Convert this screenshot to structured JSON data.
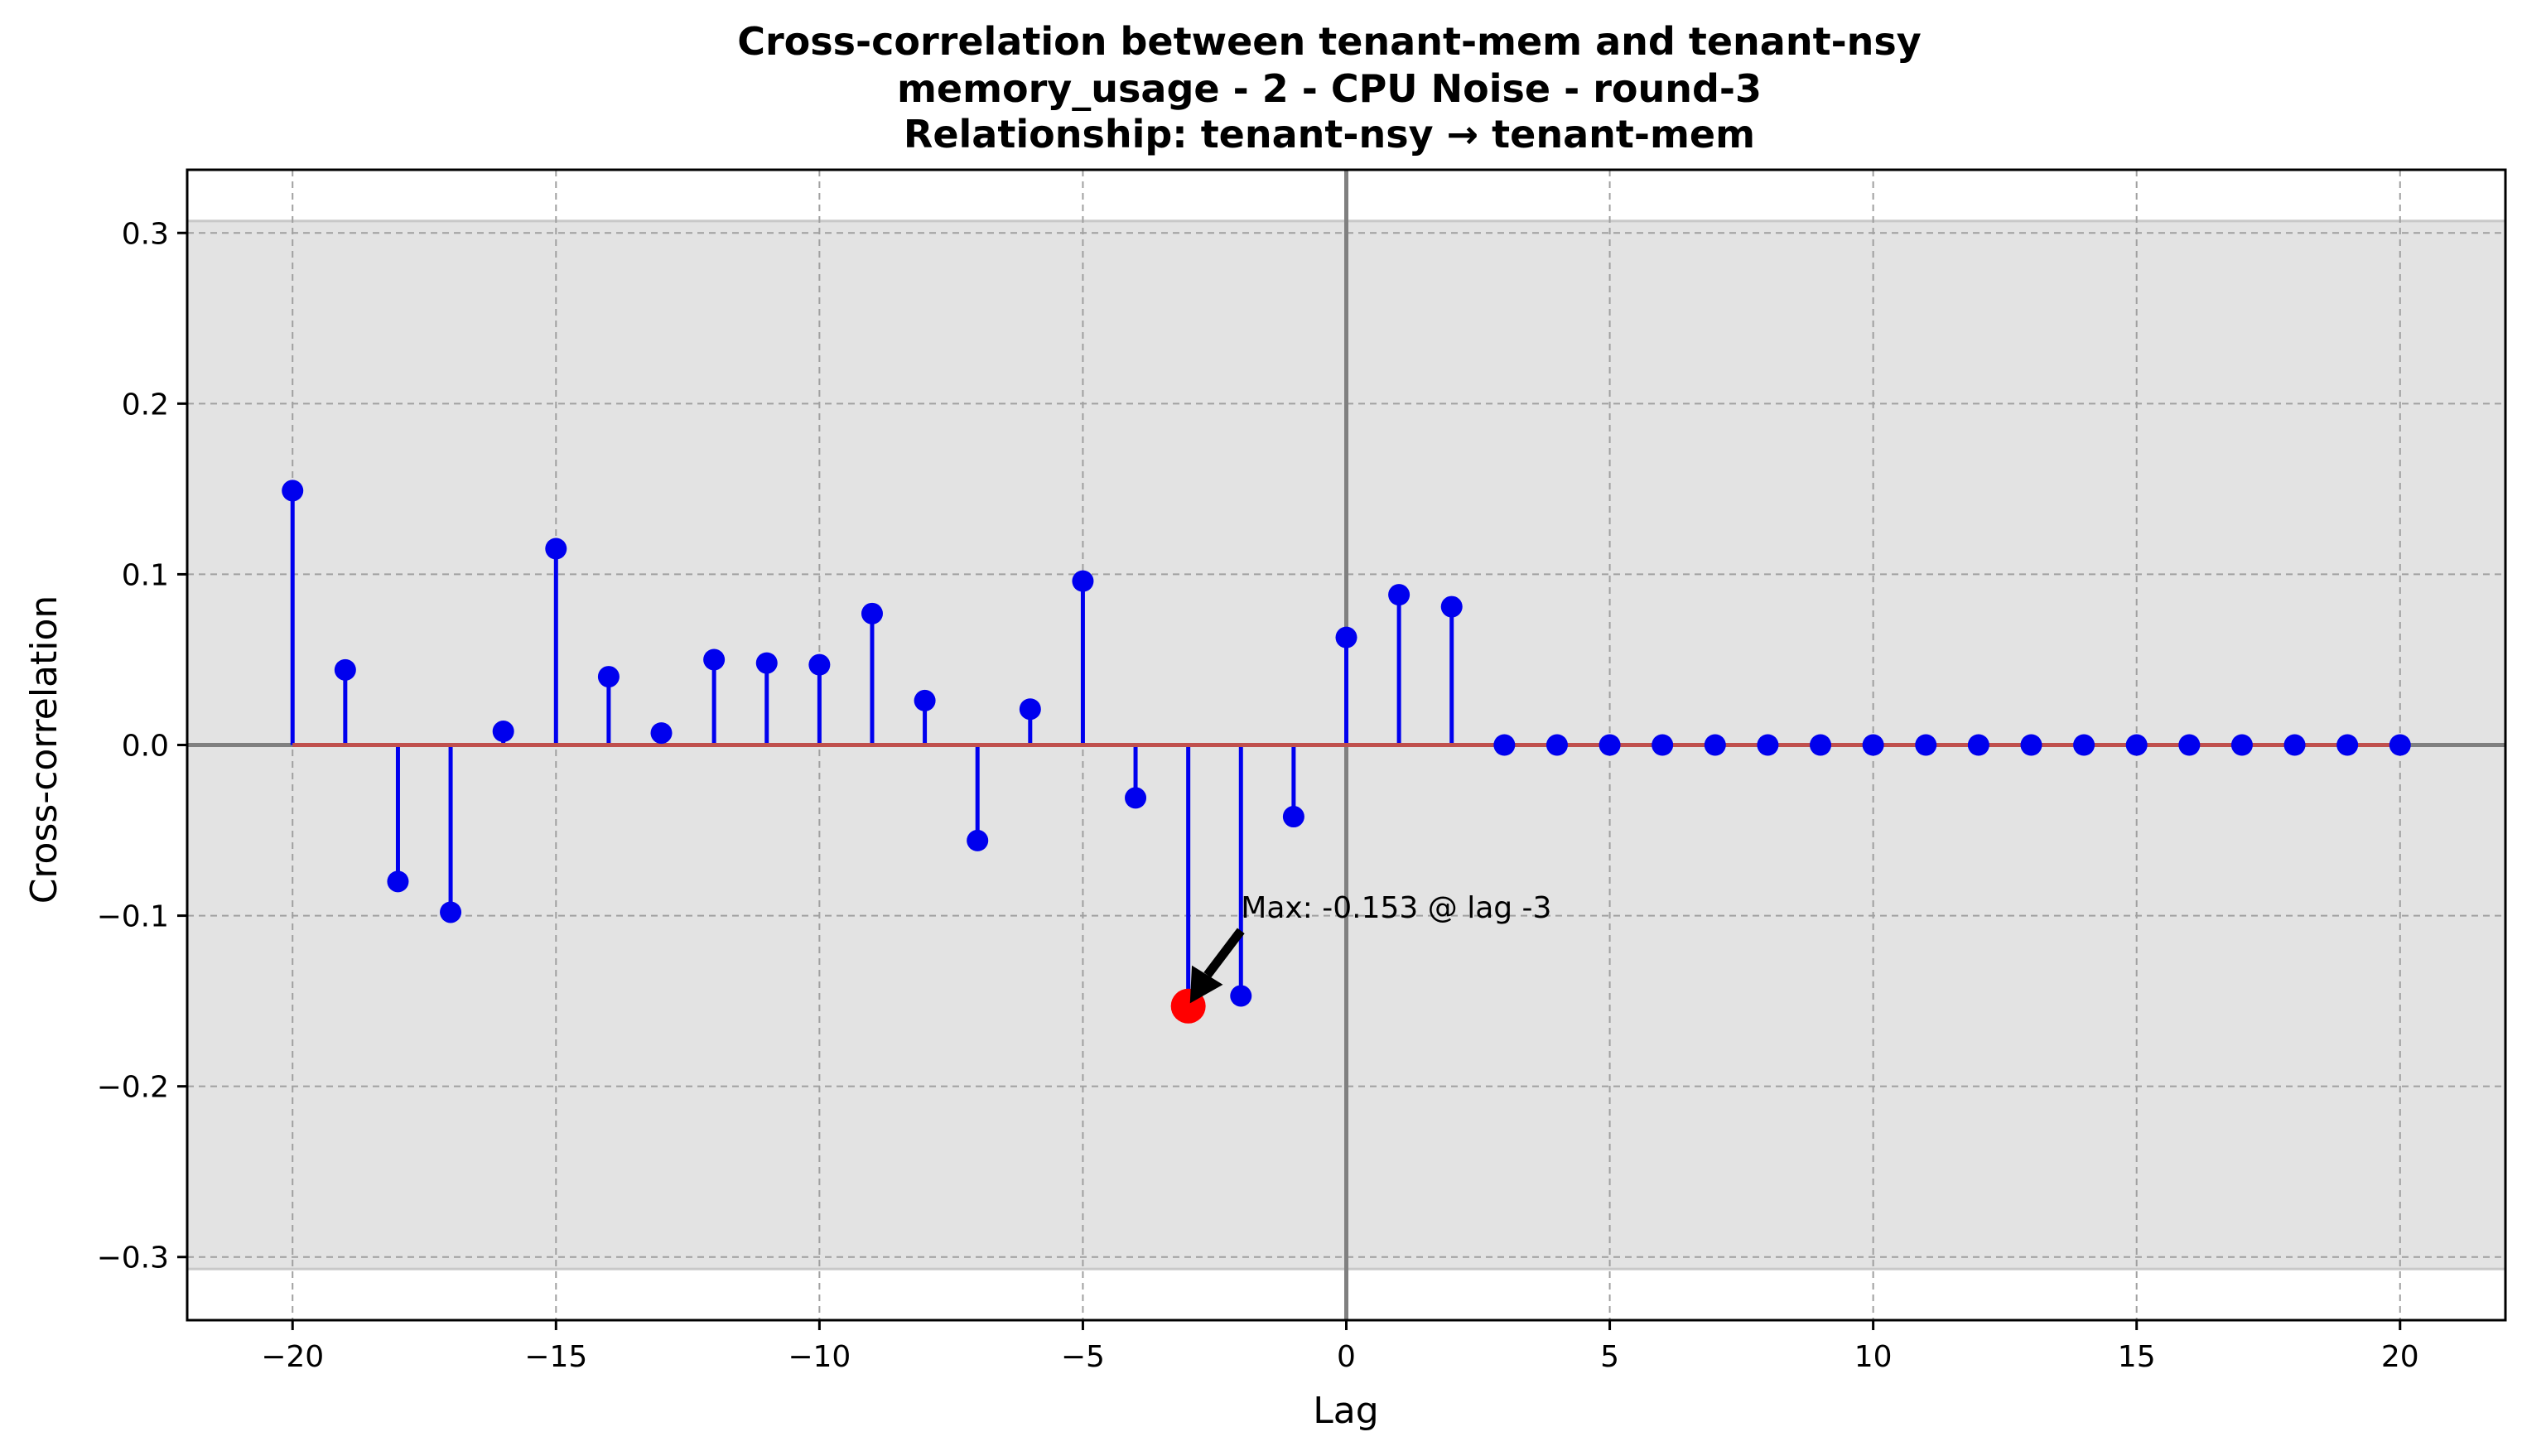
{
  "chart_data": {
    "type": "stem",
    "title_lines": [
      "Cross-correlation between tenant-mem and tenant-nsy",
      "memory_usage - 2 - CPU Noise - round-3",
      "Relationship: tenant-nsy → tenant-mem"
    ],
    "xlabel": "Lag",
    "ylabel": "Cross-correlation",
    "xlim": [
      -22,
      22
    ],
    "ylim": [
      -0.337,
      0.337
    ],
    "xticks": [
      -20,
      -15,
      -10,
      -5,
      0,
      5,
      10,
      15,
      20
    ],
    "xtick_labels": [
      "−20",
      "−15",
      "−10",
      "−5",
      "0",
      "5",
      "10",
      "15",
      "20"
    ],
    "yticks": [
      -0.3,
      -0.2,
      -0.1,
      0.0,
      0.1,
      0.2,
      0.3
    ],
    "ytick_labels": [
      "−0.3",
      "−0.2",
      "−0.1",
      "0.0",
      "0.1",
      "0.2",
      "0.3"
    ],
    "grid": true,
    "significance_band": 0.307,
    "series": [
      {
        "x": [
          -20,
          -19,
          -18,
          -17,
          -16,
          -15,
          -14,
          -13,
          -12,
          -11,
          -10,
          -9,
          -8,
          -7,
          -6,
          -5,
          -4,
          -3,
          -2,
          -1,
          0,
          1,
          2,
          3,
          4,
          5,
          6,
          7,
          8,
          9,
          10,
          11,
          12,
          13,
          14,
          15,
          16,
          17,
          18,
          19,
          20
        ],
        "values": [
          0.149,
          0.044,
          -0.08,
          -0.098,
          0.008,
          0.115,
          0.04,
          0.007,
          0.05,
          0.048,
          0.047,
          0.077,
          0.026,
          -0.056,
          0.021,
          0.096,
          -0.031,
          -0.153,
          -0.147,
          -0.042,
          0.063,
          0.088,
          0.081,
          0.0,
          0.0,
          0.0,
          0.0,
          0.0,
          0.0,
          0.0,
          0.0,
          0.0,
          0.0,
          0.0,
          0.0,
          0.0,
          0.0,
          0.0,
          0.0,
          0.0,
          0.0
        ]
      }
    ],
    "highlight": {
      "x": -3,
      "y": -0.153
    },
    "annotation": {
      "text": "Max: -0.153 @ lag -3",
      "text_x": -2,
      "text_y": -0.103
    },
    "colors": {
      "stem": "#0000ee",
      "baseline": "#c0504d",
      "highlight": "#ff0000",
      "band": "#e3e3e3",
      "grid": "#a0a0a0",
      "zero_lines": "#808080"
    }
  }
}
